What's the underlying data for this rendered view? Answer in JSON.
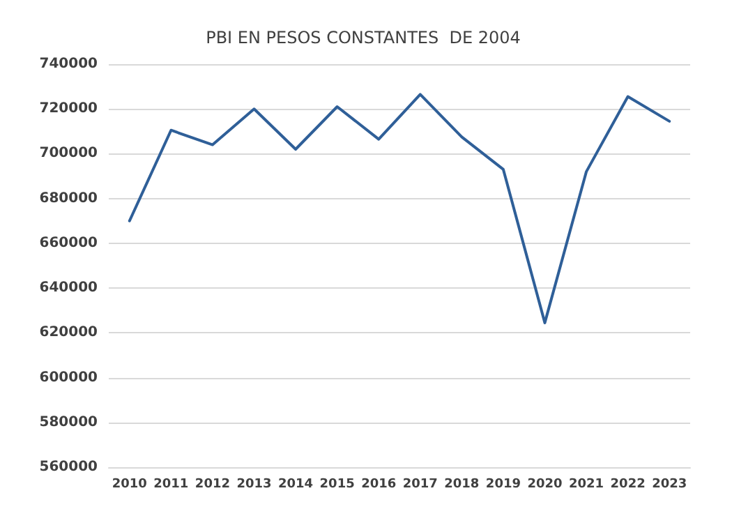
{
  "chart_data": {
    "type": "line",
    "title": "PBI EN PESOS CONSTANTES  DE 2004",
    "categories": [
      "2010",
      "2011",
      "2012",
      "2013",
      "2014",
      "2015",
      "2016",
      "2017",
      "2018",
      "2019",
      "2020",
      "2021",
      "2022",
      "2023"
    ],
    "series": [
      {
        "color": "#2f5f98",
        "values": [
          670000,
          710500,
          704000,
          720000,
          702000,
          721000,
          706500,
          726500,
          707500,
          693000,
          624500,
          692000,
          725500,
          714500
        ]
      }
    ],
    "ylim": [
      560000,
      740000
    ],
    "yticks": [
      560000,
      580000,
      600000,
      620000,
      640000,
      660000,
      680000,
      700000,
      720000,
      740000
    ],
    "grid": "y",
    "marker": "none",
    "line_style": "solid"
  }
}
